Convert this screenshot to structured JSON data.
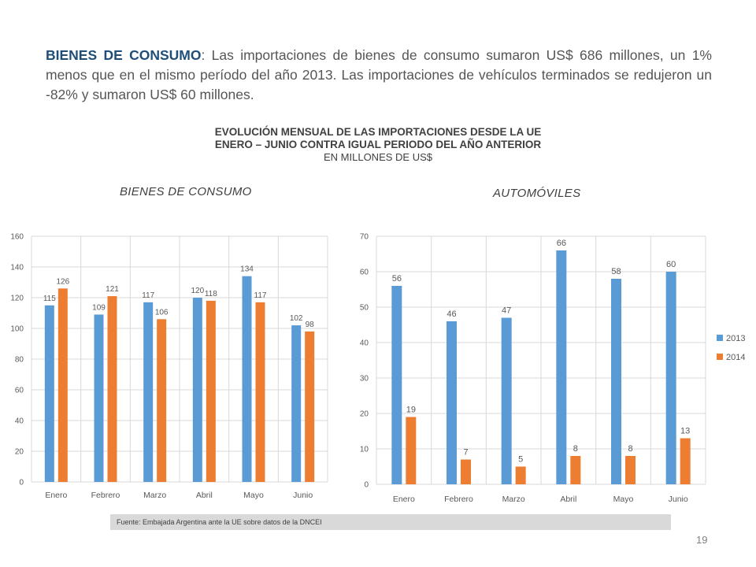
{
  "intro": {
    "lead": "BIENES DE CONSUMO",
    "text": ": Las importaciones de bienes de consumo sumaron US$ 686 millones, un 1% menos que en el mismo período del año 2013. Las importaciones de vehículos terminados se redujeron un -82% y sumaron US$ 60 millones."
  },
  "title": {
    "line1": "EVOLUCIÓN MENSUAL DE LAS IMPORTACIONES DESDE LA UE",
    "line2": "ENERO – JUNIO CONTRA IGUAL PERIODO DEL AÑO ANTERIOR",
    "line3": "EN MILLONES DE US$"
  },
  "colors": {
    "s2013": "#5b9bd5",
    "s2014": "#ed7d31",
    "grid": "#d9d9d9",
    "text": "#595959"
  },
  "chart_data": [
    {
      "type": "bar",
      "title": "BIENES DE CONSUMO",
      "categories": [
        "Enero",
        "Febrero",
        "Marzo",
        "Abril",
        "Mayo",
        "Junio"
      ],
      "series": [
        {
          "values": [
            115,
            109,
            117,
            120,
            134,
            102
          ]
        },
        {
          "values": [
            126,
            121,
            106,
            118,
            117,
            98
          ]
        }
      ],
      "yticks": [
        "0",
        "20",
        "40",
        "60",
        "80",
        "100",
        "120",
        "140",
        "160"
      ],
      "ylim": [
        0,
        160
      ],
      "grid": true,
      "legend": "none"
    },
    {
      "type": "bar",
      "title": "AUTOMÓVILES",
      "categories": [
        "Enero",
        "Febrero",
        "Marzo",
        "Abril",
        "Mayo",
        "Junio"
      ],
      "series": [
        {
          "name": "2013",
          "values": [
            56,
            46,
            47,
            66,
            58,
            60
          ]
        },
        {
          "name": "2014",
          "values": [
            19,
            7,
            5,
            8,
            8,
            13
          ]
        }
      ],
      "yticks": [
        "0",
        "10",
        "20",
        "30",
        "40",
        "50",
        "60",
        "70"
      ],
      "ylim": [
        0,
        70
      ],
      "grid": true,
      "legend": "right"
    }
  ],
  "source": "Fuente: Embajada Argentina ante la UE sobre datos de la DNCEI",
  "page_number": "19"
}
